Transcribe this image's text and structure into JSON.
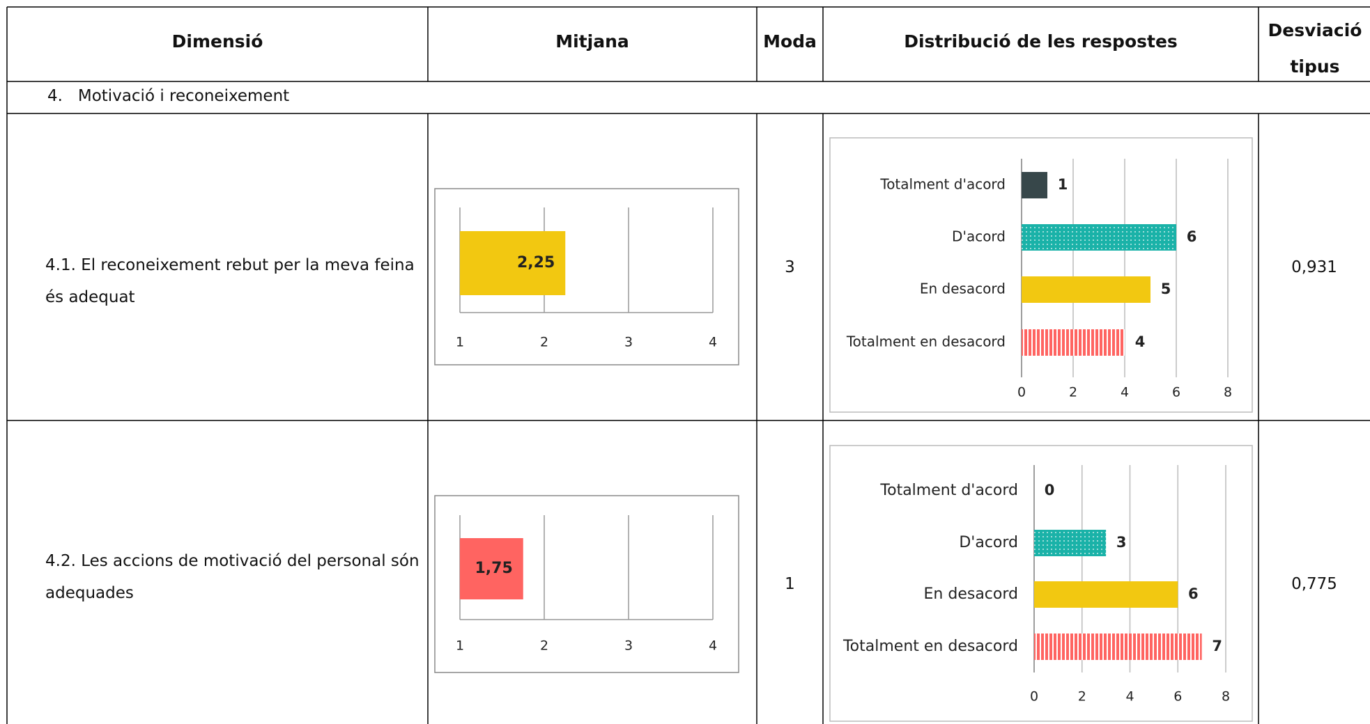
{
  "table": {
    "headers": [
      "Dimensió",
      "Mitjana",
      "Moda",
      "Distribució de les respostes",
      "Desviació tipus"
    ],
    "section": "4.   Motivació i reconeixement",
    "rows": [
      {
        "dimension": "4.1. El reconeixement rebut per la meva feina és adequat",
        "mean": {
          "type": "bar",
          "values": [
            2.25
          ],
          "value_labels": [
            "2,25"
          ],
          "color": "#f2c811",
          "xlim": [
            1,
            4
          ],
          "xticks": [
            1,
            2,
            3,
            4
          ],
          "grid": true
        },
        "mode": 3,
        "distribution": {
          "type": "bar",
          "categories": [
            "Totalment d'acord",
            "D'acord",
            "En desacord",
            "Totalment en desacord"
          ],
          "values": [
            1,
            6,
            5,
            4
          ],
          "colors": [
            "#37474a",
            "#1ab2a8",
            "#f2c811",
            "#ff6461"
          ],
          "xlim": [
            0,
            8
          ],
          "xticks": [
            0,
            2,
            4,
            6,
            8
          ],
          "grid": true
        },
        "std": "0,931"
      },
      {
        "dimension": "4.2. Les accions de motivació del personal són adequades",
        "mean": {
          "type": "bar",
          "values": [
            1.75
          ],
          "value_labels": [
            "1,75"
          ],
          "color": "#ff6461",
          "xlim": [
            1,
            4
          ],
          "xticks": [
            1,
            2,
            3,
            4
          ],
          "grid": true
        },
        "mode": 1,
        "distribution": {
          "type": "bar",
          "categories": [
            "Totalment d'acord",
            "D'acord",
            "En desacord",
            "Totalment en desacord"
          ],
          "values": [
            0,
            3,
            6,
            7
          ],
          "colors": [
            "#37474a",
            "#1ab2a8",
            "#f2c811",
            "#ff6461"
          ],
          "xlim": [
            0,
            8
          ],
          "xticks": [
            0,
            2,
            4,
            6,
            8
          ],
          "grid": true
        },
        "std": "0,775"
      }
    ]
  }
}
